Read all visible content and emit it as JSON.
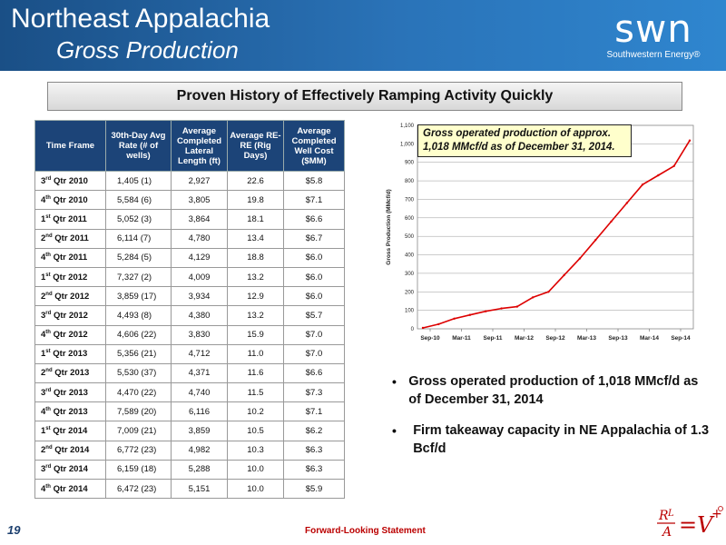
{
  "header": {
    "title": "Northeast Appalachia",
    "subtitle": "Gross Production",
    "logo_word": "swn",
    "logo_sub": "Southwestern Energy®"
  },
  "banner": "Proven History of Effectively Ramping Activity Quickly",
  "table": {
    "headers": [
      "Time Frame",
      "30th-Day Avg Rate (# of wells)",
      "Average Completed Lateral Length (ft)",
      "Average RE-RE (Rig Days)",
      "Average Completed Well Cost ($MM)"
    ],
    "rows": [
      {
        "q": "3",
        "s": "rd",
        "t": "Qtr 2010",
        "rate": "1,405  (1)",
        "len": "2,927",
        "re": "22.6",
        "cost": "$5.8"
      },
      {
        "q": "4",
        "s": "th",
        "t": "Qtr 2010",
        "rate": "5,584  (6)",
        "len": "3,805",
        "re": "19.8",
        "cost": "$7.1"
      },
      {
        "q": "1",
        "s": "st",
        "t": "Qtr 2011",
        "rate": "5,052  (3)",
        "len": "3,864",
        "re": "18.1",
        "cost": "$6.6"
      },
      {
        "q": "2",
        "s": "nd",
        "t": "Qtr 2011",
        "rate": "6,114  (7)",
        "len": "4,780",
        "re": "13.4",
        "cost": "$6.7"
      },
      {
        "q": "4",
        "s": "th",
        "t": "Qtr 2011",
        "rate": "5,284  (5)",
        "len": "4,129",
        "re": "18.8",
        "cost": "$6.0"
      },
      {
        "q": "1",
        "s": "st",
        "t": "Qtr 2012",
        "rate": "7,327  (2)",
        "len": "4,009",
        "re": "13.2",
        "cost": "$6.0"
      },
      {
        "q": "2",
        "s": "nd",
        "t": "Qtr 2012",
        "rate": "3,859  (17)",
        "len": "3,934",
        "re": "12.9",
        "cost": "$6.0"
      },
      {
        "q": "3",
        "s": "rd",
        "t": "Qtr 2012",
        "rate": "4,493  (8)",
        "len": "4,380",
        "re": "13.2",
        "cost": "$5.7"
      },
      {
        "q": "4",
        "s": "th",
        "t": "Qtr 2012",
        "rate": "4,606  (22)",
        "len": "3,830",
        "re": "15.9",
        "cost": "$7.0"
      },
      {
        "q": "1",
        "s": "st",
        "t": "Qtr 2013",
        "rate": "5,356  (21)",
        "len": "4,712",
        "re": "11.0",
        "cost": "$7.0"
      },
      {
        "q": "2",
        "s": "nd",
        "t": "Qtr 2013",
        "rate": "5,530  (37)",
        "len": "4,371",
        "re": "11.6",
        "cost": "$6.6"
      },
      {
        "q": "3",
        "s": "rd",
        "t": "Qtr 2013",
        "rate": "4,470  (22)",
        "len": "4,740",
        "re": "11.5",
        "cost": "$7.3"
      },
      {
        "q": "4",
        "s": "th",
        "t": "Qtr 2013",
        "rate": "7,589  (20)",
        "len": "6,116",
        "re": "10.2",
        "cost": "$7.1"
      },
      {
        "q": "1",
        "s": "st",
        "t": "Qtr 2014",
        "rate": "7,009  (21)",
        "len": "3,859",
        "re": "10.5",
        "cost": "$6.2"
      },
      {
        "q": "2",
        "s": "nd",
        "t": "Qtr 2014",
        "rate": "6,772  (23)",
        "len": "4,982",
        "re": "10.3",
        "cost": "$6.3"
      },
      {
        "q": "3",
        "s": "rd",
        "t": "Qtr 2014",
        "rate": "6,159  (18)",
        "len": "5,288",
        "re": "10.0",
        "cost": "$6.3"
      },
      {
        "q": "4",
        "s": "th",
        "t": "Qtr 2014",
        "rate": "6,472  (23)",
        "len": "5,151",
        "re": "10.0",
        "cost": "$5.9"
      }
    ]
  },
  "chart_data": {
    "type": "line",
    "title": "",
    "ylabel": "Gross Production (MMcf/d)",
    "xlabel": "",
    "ylim": [
      0,
      1100
    ],
    "yticks": [
      "0",
      "100",
      "200",
      "300",
      "400",
      "500",
      "600",
      "700",
      "800",
      "900",
      "1,000",
      "1,100"
    ],
    "xticks": [
      "Sep-10",
      "Mar-11",
      "Sep-11",
      "Mar-12",
      "Sep-12",
      "Mar-13",
      "Sep-13",
      "Mar-14",
      "Sep-14"
    ],
    "grid": true,
    "line_color": "#dd0000",
    "annotation": "Gross operated production of approx. 1,018 MMcf/d as of December 31, 2014.",
    "series": [
      {
        "name": "",
        "x": [
          "2010-09",
          "2010-12",
          "2011-03",
          "2011-06",
          "2011-09",
          "2011-12",
          "2012-03",
          "2012-06",
          "2012-09",
          "2012-12",
          "2013-03",
          "2013-06",
          "2013-09",
          "2013-12",
          "2014-03",
          "2014-06",
          "2014-09",
          "2014-12"
        ],
        "values": [
          5,
          25,
          55,
          75,
          95,
          110,
          120,
          170,
          200,
          290,
          380,
          480,
          580,
          680,
          780,
          830,
          880,
          1018
        ]
      }
    ]
  },
  "bullets": [
    "Gross operated production of 1,018 MMcf/d as of December 31, 2014",
    "Firm takeaway capacity in NE Appalachia of 1.3 Bcf/d"
  ],
  "footer": {
    "page": "19",
    "link": "Forward-Looking Statement"
  }
}
